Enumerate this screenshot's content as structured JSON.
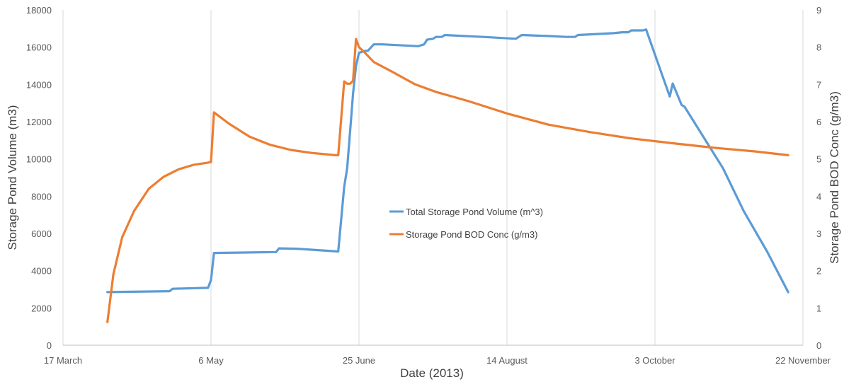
{
  "chart_data": {
    "type": "line",
    "title": "",
    "xlabel": "Date (2013)",
    "ylabel_left": "Storage Pond Volume (m3)",
    "ylabel_right": "Storage Pond BOD Conc (g/m3)",
    "x_ticks": [
      {
        "date": "2013-03-17",
        "label": "17 March"
      },
      {
        "date": "2013-05-06",
        "label": "6 May"
      },
      {
        "date": "2013-06-25",
        "label": "25 June"
      },
      {
        "date": "2013-08-14",
        "label": "14 August"
      },
      {
        "date": "2013-10-03",
        "label": "3 October"
      },
      {
        "date": "2013-11-22",
        "label": "22 November"
      }
    ],
    "xlim": [
      "2013-03-17",
      "2013-11-22"
    ],
    "ylim_left": [
      0,
      18000
    ],
    "y_ticks_left": [
      0,
      2000,
      4000,
      6000,
      8000,
      10000,
      12000,
      14000,
      16000,
      18000
    ],
    "ylim_right": [
      0,
      9
    ],
    "y_ticks_right": [
      0,
      1,
      2,
      3,
      4,
      5,
      6,
      7,
      8,
      9
    ],
    "grid": "vertical",
    "legend_position": "center",
    "series": [
      {
        "name": "Total Storage Pond Volume (m^3)",
        "axis": "left",
        "color": "#5b9bd5",
        "points": [
          [
            "2013-04-01",
            2850
          ],
          [
            "2013-04-22",
            2900
          ],
          [
            "2013-04-23",
            3030
          ],
          [
            "2013-05-05",
            3080
          ],
          [
            "2013-05-06",
            3500
          ],
          [
            "2013-05-07",
            4950
          ],
          [
            "2013-05-19",
            4980
          ],
          [
            "2013-05-28",
            5000
          ],
          [
            "2013-05-29",
            5200
          ],
          [
            "2013-06-04",
            5180
          ],
          [
            "2013-06-18",
            5030
          ],
          [
            "2013-06-20",
            8500
          ],
          [
            "2013-06-21",
            9500
          ],
          [
            "2013-06-22",
            11500
          ],
          [
            "2013-06-23",
            13500
          ],
          [
            "2013-06-24",
            15000
          ],
          [
            "2013-06-25",
            15700
          ],
          [
            "2013-06-27",
            15800
          ],
          [
            "2013-06-28",
            15800
          ],
          [
            "2013-06-30",
            16150
          ],
          [
            "2013-07-03",
            16150
          ],
          [
            "2013-07-15",
            16050
          ],
          [
            "2013-07-16",
            16100
          ],
          [
            "2013-07-17",
            16150
          ],
          [
            "2013-07-18",
            16400
          ],
          [
            "2013-07-20",
            16450
          ],
          [
            "2013-07-21",
            16550
          ],
          [
            "2013-07-23",
            16550
          ],
          [
            "2013-07-24",
            16650
          ],
          [
            "2013-08-06",
            16550
          ],
          [
            "2013-08-17",
            16450
          ],
          [
            "2013-08-19",
            16650
          ],
          [
            "2013-08-28",
            16600
          ],
          [
            "2013-09-03",
            16550
          ],
          [
            "2013-09-06",
            16550
          ],
          [
            "2013-09-07",
            16650
          ],
          [
            "2013-09-19",
            16750
          ],
          [
            "2013-09-22",
            16800
          ],
          [
            "2013-09-24",
            16800
          ],
          [
            "2013-09-25",
            16900
          ],
          [
            "2013-09-29",
            16900
          ],
          [
            "2013-09-30",
            16950
          ],
          [
            "2013-10-08",
            13350
          ],
          [
            "2013-10-09",
            14050
          ],
          [
            "2013-10-12",
            12900
          ],
          [
            "2013-10-13",
            12800
          ],
          [
            "2013-10-26",
            9500
          ],
          [
            "2013-11-02",
            7200
          ],
          [
            "2013-11-10",
            5000
          ],
          [
            "2013-11-17",
            2850
          ]
        ]
      },
      {
        "name": "Storage Pond BOD Conc (g/m3)",
        "axis": "right",
        "color": "#ed7d31",
        "points": [
          [
            "2013-04-01",
            0.62
          ],
          [
            "2013-04-03",
            1.9
          ],
          [
            "2013-04-06",
            2.9
          ],
          [
            "2013-04-10",
            3.6
          ],
          [
            "2013-04-15",
            4.2
          ],
          [
            "2013-04-20",
            4.52
          ],
          [
            "2013-04-25",
            4.72
          ],
          [
            "2013-04-30",
            4.84
          ],
          [
            "2013-05-05",
            4.9
          ],
          [
            "2013-05-06",
            4.92
          ],
          [
            "2013-05-07",
            6.25
          ],
          [
            "2013-05-12",
            5.95
          ],
          [
            "2013-05-19",
            5.6
          ],
          [
            "2013-05-26",
            5.38
          ],
          [
            "2013-06-02",
            5.24
          ],
          [
            "2013-06-09",
            5.16
          ],
          [
            "2013-06-17",
            5.1
          ],
          [
            "2013-06-18",
            5.1
          ],
          [
            "2013-06-20",
            7.08
          ],
          [
            "2013-06-21",
            7.02
          ],
          [
            "2013-06-22",
            7.02
          ],
          [
            "2013-06-23",
            7.1
          ],
          [
            "2013-06-24",
            8.22
          ],
          [
            "2013-06-25",
            8.0
          ],
          [
            "2013-06-27",
            7.85
          ],
          [
            "2013-06-30",
            7.6
          ],
          [
            "2013-07-06",
            7.35
          ],
          [
            "2013-07-14",
            7.0
          ],
          [
            "2013-07-21",
            6.8
          ],
          [
            "2013-08-01",
            6.55
          ],
          [
            "2013-08-14",
            6.22
          ],
          [
            "2013-08-28",
            5.92
          ],
          [
            "2013-09-11",
            5.72
          ],
          [
            "2013-09-25",
            5.55
          ],
          [
            "2013-10-09",
            5.42
          ],
          [
            "2013-10-23",
            5.3
          ],
          [
            "2013-11-06",
            5.2
          ],
          [
            "2013-11-17",
            5.1
          ]
        ]
      }
    ]
  }
}
